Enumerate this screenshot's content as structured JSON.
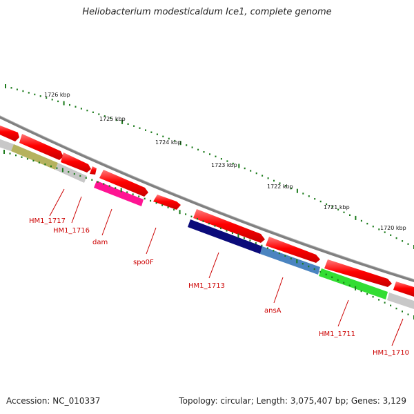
{
  "title": "Heliobacterium modesticaldum Ice1, complete genome",
  "footer": {
    "accession": "Accession: NC_010337",
    "summary": "Topology: circular; Length: 3,075,407 bp; Genes: 3,129"
  },
  "ruler": [
    "1726 kbp",
    "1725 kbp",
    "1724 kbp",
    "1723 kbp",
    "1722 kbp",
    "1721 kbp",
    "1720 kbp"
  ],
  "genes": [
    "HM1_1717",
    "HM1_1716",
    "dam",
    "spo0F",
    "HM1_1713",
    "ansA",
    "HM1_1711",
    "HM1_1710"
  ],
  "colors": {
    "cds": "#ff0000",
    "backbone": "#808080",
    "tick": "#1a7a1a",
    "label": "#cc0000",
    "gene_olive": "#b5b25e",
    "gene_grey": "#c8c8c8",
    "gene_magenta": "#ff1493",
    "gene_navy": "#0b0b7a",
    "gene_steelblue": "#4a84c0",
    "gene_green": "#33dd33"
  }
}
